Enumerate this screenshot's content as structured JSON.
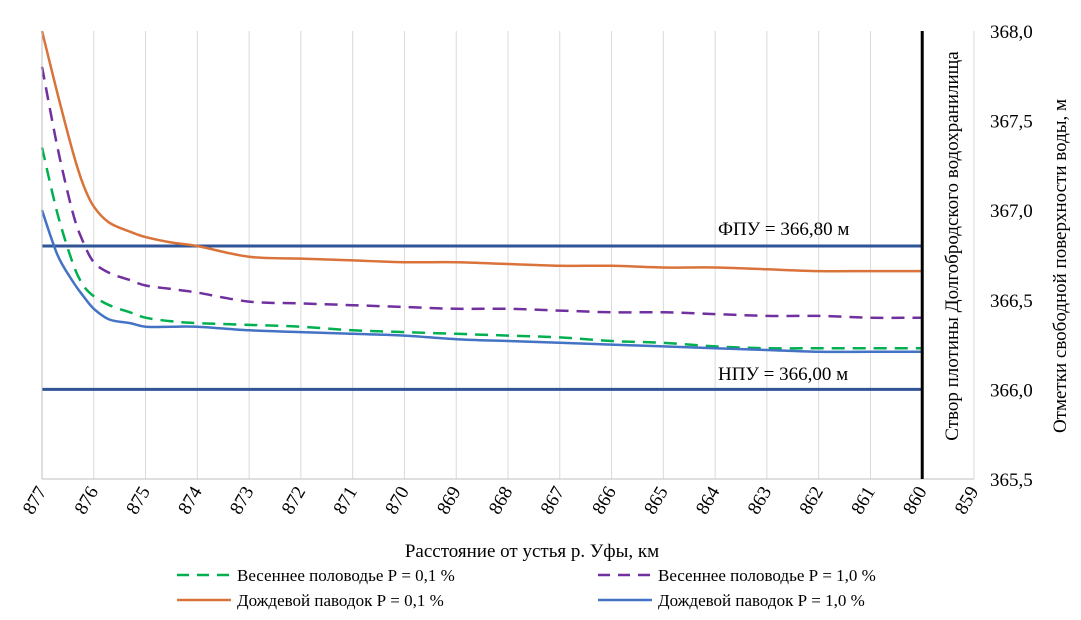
{
  "chart_data": {
    "type": "line",
    "xlabel": "Расстояние от устья р. Уфы, км",
    "ylabel": "Отметки свободной поверхности  воды, м",
    "xlim": [
      877,
      859
    ],
    "ylim": [
      365.5,
      368.0
    ],
    "x_ticks": [
      "877",
      "876",
      "875",
      "874",
      "873",
      "872",
      "871",
      "870",
      "869",
      "868",
      "867",
      "866",
      "865",
      "864",
      "863",
      "862",
      "861",
      "860",
      "859"
    ],
    "y_ticks": [
      "365,5",
      "366,0",
      "366,5",
      "367,0",
      "367,5",
      "368,0"
    ],
    "x_tick_values": [
      877,
      876,
      875,
      874,
      873,
      872,
      871,
      870,
      869,
      868,
      867,
      866,
      865,
      864,
      863,
      862,
      861,
      860,
      859
    ],
    "y_tick_values": [
      365.5,
      366.0,
      366.5,
      367.0,
      367.5,
      368.0
    ],
    "reference_lines": [
      {
        "name": "ФПУ",
        "value": 366.8,
        "label": "ФПУ  = 366,80  м",
        "color": "#2F5597"
      },
      {
        "name": "НПУ",
        "value": 366.0,
        "label": "НПУ  = 366,00  м",
        "color": "#2F5597"
      }
    ],
    "dam": {
      "x": 860,
      "label": "Створ плотины Долгобродского водохранилища",
      "color": "#000000"
    },
    "series": [
      {
        "name": "Весеннее половодье Р = 0,1 %",
        "color": "#00B050",
        "dash": "dashed",
        "x": [
          877,
          876.7,
          876.4,
          876.2,
          876,
          875.7,
          875.3,
          875,
          874.5,
          874,
          873,
          872,
          871,
          870,
          869,
          868,
          867,
          866,
          865,
          864,
          863,
          862,
          861,
          860
        ],
        "y": [
          367.35,
          366.98,
          366.7,
          366.58,
          366.52,
          366.47,
          366.43,
          366.4,
          366.38,
          366.37,
          366.36,
          366.35,
          366.33,
          366.32,
          366.31,
          366.3,
          366.29,
          366.27,
          366.26,
          366.24,
          366.23,
          366.23,
          366.23,
          366.23
        ]
      },
      {
        "name": "Весеннее половодье Р = 1,0 %",
        "color": "#7030A0",
        "dash": "dashed",
        "x": [
          877,
          876.7,
          876.4,
          876.2,
          876,
          875.7,
          875.3,
          875,
          874.5,
          874,
          873,
          872,
          871,
          870,
          869,
          868,
          867,
          866,
          865,
          864,
          863,
          862,
          861,
          860
        ],
        "y": [
          367.8,
          367.35,
          366.98,
          366.82,
          366.71,
          366.65,
          366.61,
          366.58,
          366.56,
          366.54,
          366.49,
          366.48,
          366.47,
          366.46,
          366.45,
          366.45,
          366.44,
          366.43,
          366.43,
          366.42,
          366.41,
          366.41,
          366.4,
          366.4
        ]
      },
      {
        "name": "Дождевой паводок Р = 0,1 %",
        "color": "#D9733A",
        "dash": "solid",
        "x": [
          877,
          876.7,
          876.4,
          876.2,
          876,
          875.7,
          875.3,
          875,
          874.5,
          874,
          873,
          872,
          871,
          870,
          869,
          868,
          867,
          866,
          865,
          864,
          863,
          862,
          861,
          860
        ],
        "y": [
          368.0,
          367.65,
          367.32,
          367.14,
          367.02,
          366.93,
          366.88,
          366.85,
          366.82,
          366.8,
          366.74,
          366.73,
          366.72,
          366.71,
          366.71,
          366.7,
          366.69,
          366.69,
          366.68,
          366.68,
          366.67,
          366.66,
          366.66,
          366.66
        ]
      },
      {
        "name": "Дождевой паводок Р = 1,0 %",
        "color": "#4472C4",
        "dash": "solid",
        "x": [
          877,
          876.7,
          876.4,
          876.2,
          876,
          875.7,
          875.3,
          875,
          874.5,
          874,
          873,
          872,
          871,
          870,
          869,
          868,
          867,
          866,
          865,
          864,
          863,
          862,
          861,
          860
        ],
        "y": [
          367.0,
          366.75,
          366.6,
          366.52,
          366.45,
          366.39,
          366.37,
          366.35,
          366.35,
          366.35,
          366.33,
          366.32,
          366.31,
          366.3,
          366.28,
          366.27,
          366.26,
          366.25,
          366.24,
          366.23,
          366.22,
          366.21,
          366.21,
          366.21
        ]
      }
    ]
  }
}
